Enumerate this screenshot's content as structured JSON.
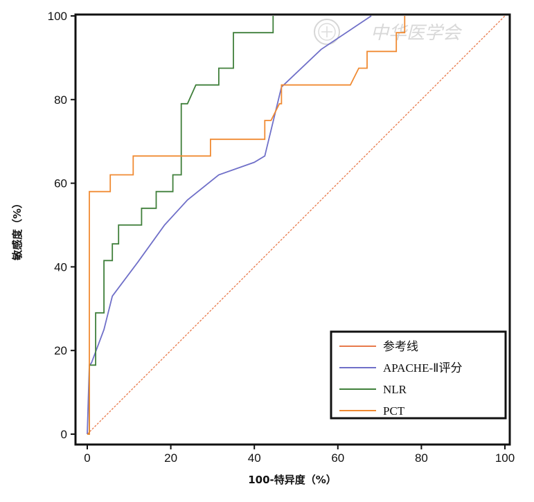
{
  "chart_data": {
    "type": "line",
    "xlabel": "100-特异度（%）",
    "ylabel": "敏感度（%）",
    "xlim": [
      0,
      100
    ],
    "ylim": [
      0,
      100
    ],
    "x_ticks": [
      "0",
      "20",
      "40",
      "60",
      "80",
      "100"
    ],
    "y_ticks": [
      "0",
      "20",
      "40",
      "60",
      "80",
      "100"
    ],
    "grid": false,
    "legend_position": "bottom-right",
    "watermark": "中华医学会",
    "series": [
      {
        "name": "参考线",
        "color": "#e8794a",
        "dashed": true,
        "x": [
          0,
          100
        ],
        "y": [
          0,
          100
        ]
      },
      {
        "name": "APACHE-Ⅱ评分",
        "color": "#6f6fc8",
        "dashed": false,
        "x": [
          0,
          0.5,
          1,
          4,
          6,
          12,
          18.5,
          24,
          31.5,
          40,
          42.5,
          46.5,
          56,
          68
        ],
        "y": [
          0,
          16.5,
          17,
          25,
          33,
          41,
          50,
          56,
          62,
          65,
          66.5,
          83,
          92,
          100
        ]
      },
      {
        "name": "NLR",
        "color": "#3f7f3a",
        "dashed": false,
        "x": [
          0,
          0.5,
          0.5,
          2,
          2,
          4,
          4,
          6,
          6,
          7.5,
          7.5,
          13,
          13,
          16.5,
          16.5,
          20.5,
          20.5,
          22.5,
          22.5,
          24,
          26,
          31.5,
          31.5,
          35,
          35,
          44.5,
          44.5
        ],
        "y": [
          0,
          0,
          16.5,
          16.5,
          29,
          29,
          41.5,
          41.5,
          45.5,
          45.5,
          50,
          50,
          54,
          54,
          58,
          58,
          62,
          62,
          79,
          79,
          83.5,
          83.5,
          87.5,
          87.5,
          96,
          96,
          100
        ]
      },
      {
        "name": "PCT",
        "color": "#f08a32",
        "dashed": false,
        "x": [
          0,
          0.5,
          0.5,
          5.5,
          5.5,
          11,
          11,
          29.5,
          29.5,
          42.5,
          42.5,
          44,
          46,
          46.5,
          46.5,
          63,
          65,
          67,
          67,
          74,
          74,
          76,
          76
        ],
        "y": [
          0,
          0,
          58,
          58,
          62,
          62,
          66.5,
          66.5,
          70.5,
          70.5,
          75,
          75,
          79,
          79,
          83.5,
          83.5,
          87.5,
          87.5,
          91.5,
          91.5,
          96,
          96,
          100
        ]
      }
    ]
  }
}
